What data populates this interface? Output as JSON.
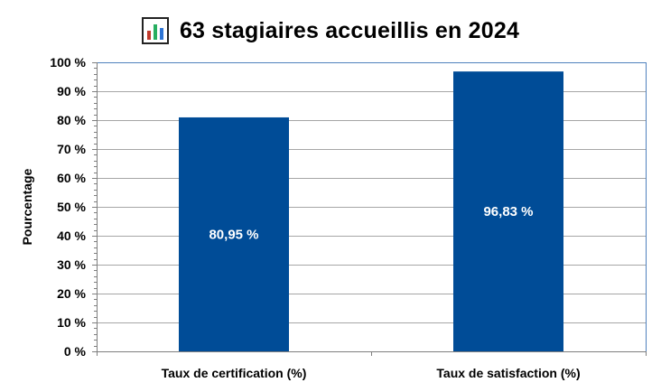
{
  "title_icon": "bar-chart-icon",
  "chart_data": {
    "type": "bar",
    "title": "63 stagiaires accueillis en 2024",
    "categories": [
      "Taux de certification (%)",
      "Taux de satisfaction (%)"
    ],
    "values": [
      80.95,
      96.83
    ],
    "data_labels": [
      "80,95 %",
      "96,83 %"
    ],
    "ylabel": "Pourcentage",
    "xlabel": "",
    "ylim": [
      0,
      100
    ],
    "yticks": [
      {
        "value": 0,
        "label": "0 %"
      },
      {
        "value": 10,
        "label": "10 %"
      },
      {
        "value": 20,
        "label": "20 %"
      },
      {
        "value": 30,
        "label": "30 %"
      },
      {
        "value": 40,
        "label": "40 %"
      },
      {
        "value": 50,
        "label": "50 %"
      },
      {
        "value": 60,
        "label": "60 %"
      },
      {
        "value": 70,
        "label": "70 %"
      },
      {
        "value": 80,
        "label": "80 %"
      },
      {
        "value": 90,
        "label": "90 %"
      },
      {
        "value": 100,
        "label": "100 %"
      }
    ],
    "grid": true,
    "legend": "none",
    "colors": {
      "bar": "#004C97",
      "data_label": "#FFFFFF",
      "gridline": "#A6A6A6",
      "plot_border": "#4F81BD",
      "text": "#000000"
    }
  }
}
